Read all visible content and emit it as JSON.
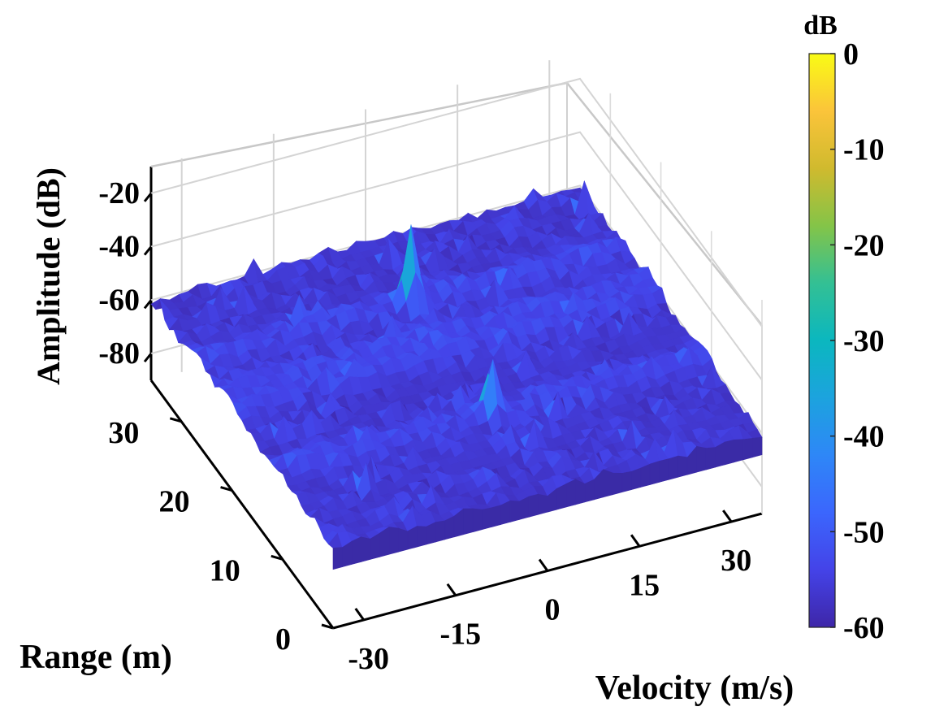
{
  "chart_data": {
    "type": "surface",
    "title": "",
    "xlabel": "Velocity (m/s)",
    "ylabel": "Range (m)",
    "zlabel": "Amplitude (dB)",
    "x_ticks": [
      "-30",
      "-15",
      "0",
      "15",
      "30"
    ],
    "x_tick_values": [
      -30,
      -15,
      0,
      15,
      30
    ],
    "y_ticks": [
      "0",
      "10",
      "20",
      "30"
    ],
    "y_tick_values": [
      0,
      10,
      20,
      30
    ],
    "z_ticks": [
      "-80",
      "-60",
      "-40",
      "-20"
    ],
    "z_tick_values": [
      -80,
      -60,
      -40,
      -20
    ],
    "xlim": [
      -35,
      35
    ],
    "ylim": [
      0,
      36
    ],
    "zlim": [
      -90,
      -10
    ],
    "noise_floor_db": -62,
    "peaks": [
      {
        "velocity": 0,
        "range": 27,
        "amplitude_db": -30
      },
      {
        "velocity": 0,
        "range": 11,
        "amplitude_db": -38
      },
      {
        "velocity": -15,
        "range": 20,
        "amplitude_db": -52
      },
      {
        "velocity": -8,
        "range": 22,
        "amplitude_db": -55
      }
    ],
    "colorbar": {
      "label": "dB",
      "ticks": [
        "0",
        "-10",
        "-20",
        "-30",
        "-40",
        "-50",
        "-60"
      ],
      "tick_values": [
        0,
        -10,
        -20,
        -30,
        -40,
        -50,
        -60
      ],
      "range": [
        -60,
        0
      ],
      "colormap": "parula"
    }
  },
  "colors": {
    "low": "#3e26a8",
    "mid": "#2e87f7",
    "teal": "#1ab2b5",
    "high": "#f9fb15"
  }
}
